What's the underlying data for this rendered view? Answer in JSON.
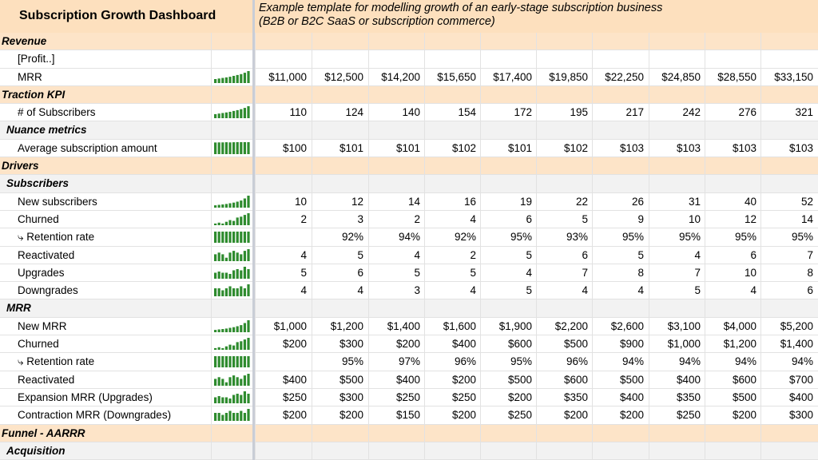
{
  "sheet": {
    "title": "Subscription Growth Dashboard",
    "description_line1": "Example template for modelling growth of an early-stage subscription business",
    "description_line2": "(B2B or B2C SaaS or subscription commerce)"
  },
  "sparkline_color": "#2e8b2e",
  "rows": [
    {
      "type": "cat",
      "label": "Revenue"
    },
    {
      "type": "data",
      "label": "[Profit..]",
      "note": true,
      "values": []
    },
    {
      "type": "data",
      "label": "MRR",
      "note": true,
      "spark": "line",
      "values": [
        "$11,000",
        "$12,500",
        "$14,200",
        "$15,650",
        "$17,400",
        "$19,850",
        "$22,250",
        "$24,850",
        "$28,550",
        "$33,150"
      ],
      "raw": [
        11000,
        12500,
        14200,
        15650,
        17400,
        19850,
        22250,
        24850,
        28550,
        33150
      ]
    },
    {
      "type": "cat",
      "label": "Traction KPI"
    },
    {
      "type": "data",
      "label": "# of Subscribers",
      "spark": "bar",
      "values": [
        "110",
        "124",
        "140",
        "154",
        "172",
        "195",
        "217",
        "242",
        "276",
        "321"
      ],
      "raw": [
        110,
        124,
        140,
        154,
        172,
        195,
        217,
        242,
        276,
        321
      ]
    },
    {
      "type": "sub",
      "label": "Nuance metrics"
    },
    {
      "type": "data",
      "label": "Average subscription amount",
      "spark": "bar",
      "values": [
        "$100",
        "$101",
        "$101",
        "$102",
        "$101",
        "$102",
        "$103",
        "$103",
        "$103",
        "$103"
      ],
      "raw": [
        100,
        101,
        101,
        102,
        101,
        102,
        103,
        103,
        103,
        103
      ]
    },
    {
      "type": "cat",
      "label": "Drivers"
    },
    {
      "type": "sub",
      "label": "Subscribers"
    },
    {
      "type": "data",
      "label": "New subscribers",
      "spark": "bar",
      "values": [
        "10",
        "12",
        "14",
        "16",
        "19",
        "22",
        "26",
        "31",
        "40",
        "52"
      ],
      "raw": [
        10,
        12,
        14,
        16,
        19,
        22,
        26,
        31,
        40,
        52
      ]
    },
    {
      "type": "data",
      "label": "Churned",
      "spark": "bar",
      "values": [
        "2",
        "3",
        "2",
        "4",
        "6",
        "5",
        "9",
        "10",
        "12",
        "14"
      ],
      "raw": [
        2,
        3,
        2,
        4,
        6,
        5,
        9,
        10,
        12,
        14
      ]
    },
    {
      "type": "data",
      "label": "⤷ Retention rate",
      "spark": "full",
      "values": [
        "",
        "92%",
        "94%",
        "92%",
        "95%",
        "93%",
        "95%",
        "95%",
        "95%",
        "95%"
      ],
      "raw": [
        0,
        92,
        94,
        92,
        95,
        93,
        95,
        95,
        95,
        95
      ]
    },
    {
      "type": "data",
      "label": "Reactivated",
      "spark": "bar",
      "values": [
        "4",
        "5",
        "4",
        "2",
        "5",
        "6",
        "5",
        "4",
        "6",
        "7"
      ],
      "raw": [
        4,
        5,
        4,
        2,
        5,
        6,
        5,
        4,
        6,
        7
      ]
    },
    {
      "type": "data",
      "label": "Upgrades",
      "spark": "bar",
      "values": [
        "5",
        "6",
        "5",
        "5",
        "4",
        "7",
        "8",
        "7",
        "10",
        "8"
      ],
      "raw": [
        5,
        6,
        5,
        5,
        4,
        7,
        8,
        7,
        10,
        8
      ]
    },
    {
      "type": "data",
      "label": "Downgrades",
      "spark": "bar",
      "values": [
        "4",
        "4",
        "3",
        "4",
        "5",
        "4",
        "4",
        "5",
        "4",
        "6"
      ],
      "raw": [
        4,
        4,
        3,
        4,
        5,
        4,
        4,
        5,
        4,
        6
      ]
    },
    {
      "type": "sub",
      "label": "MRR"
    },
    {
      "type": "data",
      "label": "New MRR",
      "spark": "bar",
      "values": [
        "$1,000",
        "$1,200",
        "$1,400",
        "$1,600",
        "$1,900",
        "$2,200",
        "$2,600",
        "$3,100",
        "$4,000",
        "$5,200"
      ],
      "raw": [
        1000,
        1200,
        1400,
        1600,
        1900,
        2200,
        2600,
        3100,
        4000,
        5200
      ]
    },
    {
      "type": "data",
      "label": "Churned",
      "spark": "bar",
      "values": [
        "$200",
        "$300",
        "$200",
        "$400",
        "$600",
        "$500",
        "$900",
        "$1,000",
        "$1,200",
        "$1,400"
      ],
      "raw": [
        200,
        300,
        200,
        400,
        600,
        500,
        900,
        1000,
        1200,
        1400
      ]
    },
    {
      "type": "data",
      "label": "⤷ Retention rate",
      "spark": "full",
      "values": [
        "",
        "95%",
        "97%",
        "96%",
        "95%",
        "96%",
        "94%",
        "94%",
        "94%",
        "94%"
      ],
      "raw": [
        0,
        95,
        97,
        96,
        95,
        96,
        94,
        94,
        94,
        94
      ]
    },
    {
      "type": "data",
      "label": "Reactivated",
      "spark": "bar",
      "values": [
        "$400",
        "$500",
        "$400",
        "$200",
        "$500",
        "$600",
        "$500",
        "$400",
        "$600",
        "$700"
      ],
      "raw": [
        400,
        500,
        400,
        200,
        500,
        600,
        500,
        400,
        600,
        700
      ]
    },
    {
      "type": "data",
      "label": "Expansion MRR (Upgrades)",
      "spark": "bar",
      "values": [
        "$250",
        "$300",
        "$250",
        "$250",
        "$200",
        "$350",
        "$400",
        "$350",
        "$500",
        "$400"
      ],
      "raw": [
        250,
        300,
        250,
        250,
        200,
        350,
        400,
        350,
        500,
        400
      ]
    },
    {
      "type": "data",
      "label": "Contraction MRR (Downgrades)",
      "spark": "bar",
      "values": [
        "$200",
        "$200",
        "$150",
        "$200",
        "$250",
        "$200",
        "$200",
        "$250",
        "$200",
        "$300"
      ],
      "raw": [
        200,
        200,
        150,
        200,
        250,
        200,
        200,
        250,
        200,
        300
      ]
    },
    {
      "type": "cat",
      "label": "Funnel - AARRR"
    },
    {
      "type": "sub",
      "label": "Acquisition"
    }
  ]
}
